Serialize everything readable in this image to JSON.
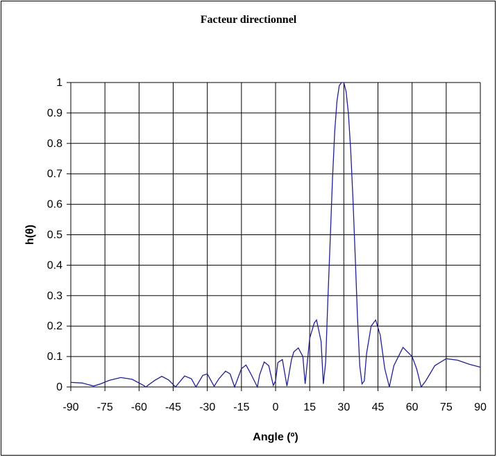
{
  "chart_data": {
    "type": "line",
    "title": "Facteur directionnel",
    "xlabel": "Angle (º)",
    "ylabel": "h(θ)",
    "xlim": [
      -90,
      90
    ],
    "ylim": [
      0,
      1
    ],
    "x_ticks": [
      "-90",
      "-75",
      "-60",
      "-45",
      "-30",
      "-15",
      "0",
      "15",
      "30",
      "45",
      "60",
      "75",
      "90"
    ],
    "y_ticks": [
      "0",
      "0.1",
      "0.2",
      "0.3",
      "0.4",
      "0.5",
      "0.6",
      "0.7",
      "0.8",
      "0.9",
      "1"
    ],
    "grid": true,
    "legend": "none",
    "series": [
      {
        "color": "#1f1f8f",
        "x": [
          -90,
          -85,
          -80,
          -77,
          -73,
          -68,
          -63,
          -58,
          -57,
          -56,
          -53,
          -50,
          -47,
          -45,
          -44,
          -40,
          -37,
          -35,
          -32,
          -30,
          -27,
          -25,
          -22,
          -20,
          -18,
          -15,
          -13,
          -11,
          -8,
          -7,
          -5,
          -3,
          -1,
          0,
          1,
          3,
          5,
          7,
          8,
          10,
          12,
          13,
          15,
          17,
          18,
          20,
          21,
          22,
          23,
          24,
          25,
          26,
          27,
          28,
          29,
          30,
          31,
          32,
          33,
          34,
          35,
          36,
          37,
          38,
          39,
          40,
          42,
          44,
          46,
          48,
          50,
          52,
          56,
          60,
          62,
          64,
          66,
          70,
          75,
          80,
          85,
          90
        ],
        "y": [
          0.015,
          0.013,
          0.003,
          0.01,
          0.022,
          0.031,
          0.025,
          0.005,
          0.0,
          0.006,
          0.022,
          0.035,
          0.023,
          0.008,
          0.0,
          0.036,
          0.027,
          0.0,
          0.038,
          0.043,
          0.002,
          0.026,
          0.052,
          0.043,
          0.0,
          0.06,
          0.072,
          0.045,
          0.0,
          0.04,
          0.082,
          0.07,
          0.005,
          0.02,
          0.08,
          0.09,
          0.003,
          0.09,
          0.115,
          0.128,
          0.1,
          0.01,
          0.16,
          0.21,
          0.22,
          0.15,
          0.01,
          0.08,
          0.29,
          0.48,
          0.68,
          0.84,
          0.94,
          0.99,
          1.0,
          1.0,
          0.97,
          0.9,
          0.78,
          0.62,
          0.43,
          0.23,
          0.07,
          0.01,
          0.02,
          0.11,
          0.2,
          0.22,
          0.17,
          0.06,
          0.0,
          0.07,
          0.13,
          0.1,
          0.06,
          0.0,
          0.02,
          0.07,
          0.093,
          0.088,
          0.075,
          0.065
        ]
      }
    ]
  }
}
